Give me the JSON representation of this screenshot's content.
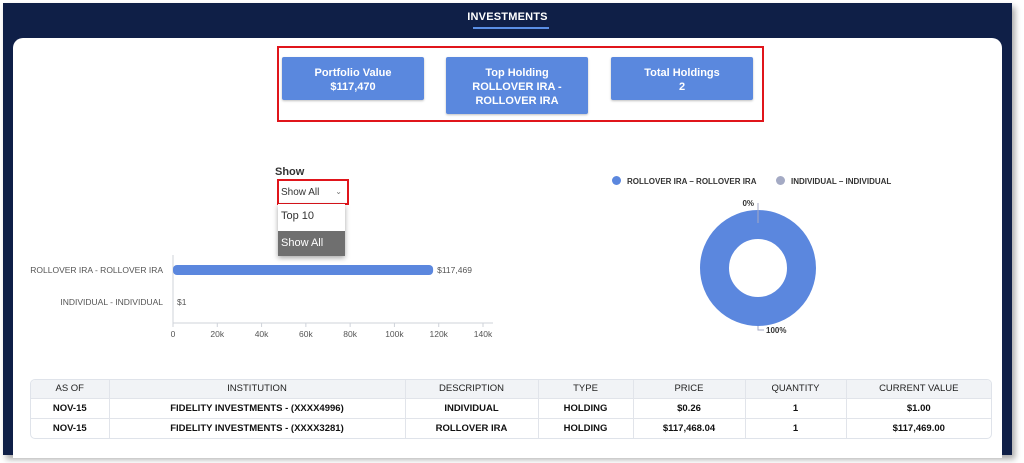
{
  "nav": {
    "title": "INVESTMENTS"
  },
  "summary": {
    "portfolio_value": {
      "label": "Portfolio Value",
      "value": "$117,470"
    },
    "top_holding": {
      "label": "Top Holding",
      "value_line1": "ROLLOVER IRA -",
      "value_line2": "ROLLOVER IRA"
    },
    "total_holdings": {
      "label": "Total Holdings",
      "value": "2"
    }
  },
  "filter": {
    "label": "Show",
    "selected": "Show All",
    "options": [
      "Top 10",
      "Show All"
    ]
  },
  "legend": [
    {
      "name": "ROLLOVER IRA – ROLLOVER IRA",
      "color": "#5b87de"
    },
    {
      "name": "INDIVIDUAL – INDIVIDUAL",
      "color": "#a4aac4"
    }
  ],
  "chart_data": [
    {
      "type": "bar",
      "orientation": "horizontal",
      "categories": [
        "ROLLOVER IRA - ROLLOVER IRA",
        "INDIVIDUAL - INDIVIDUAL"
      ],
      "values": [
        117469,
        1
      ],
      "data_labels": [
        "$117,469",
        "$1"
      ],
      "xlim": [
        0,
        140000
      ],
      "xticks": [
        0,
        20000,
        40000,
        60000,
        80000,
        100000,
        120000,
        140000
      ],
      "xtick_labels": [
        "0",
        "20k",
        "40k",
        "60k",
        "80k",
        "100k",
        "120k",
        "140k"
      ],
      "color": "#5b87de"
    },
    {
      "type": "pie",
      "donut": true,
      "categories": [
        "ROLLOVER IRA – ROLLOVER IRA",
        "INDIVIDUAL – INDIVIDUAL"
      ],
      "values": [
        117469,
        1
      ],
      "data_labels": [
        "100%",
        "0%"
      ],
      "colors": [
        "#5b87de",
        "#a4aac4"
      ]
    }
  ],
  "table": {
    "headers": [
      "AS OF",
      "INSTITUTION",
      "DESCRIPTION",
      "TYPE",
      "PRICE",
      "QUANTITY",
      "CURRENT VALUE"
    ],
    "rows": [
      [
        "NOV-15",
        "FIDELITY INVESTMENTS - (XXXX4996)",
        "INDIVIDUAL",
        "HOLDING",
        "$0.26",
        "1",
        "$1.00"
      ],
      [
        "NOV-15",
        "FIDELITY INVESTMENTS - (XXXX3281)",
        "ROLLOVER IRA",
        "HOLDING",
        "$117,468.04",
        "1",
        "$117,469.00"
      ]
    ]
  }
}
